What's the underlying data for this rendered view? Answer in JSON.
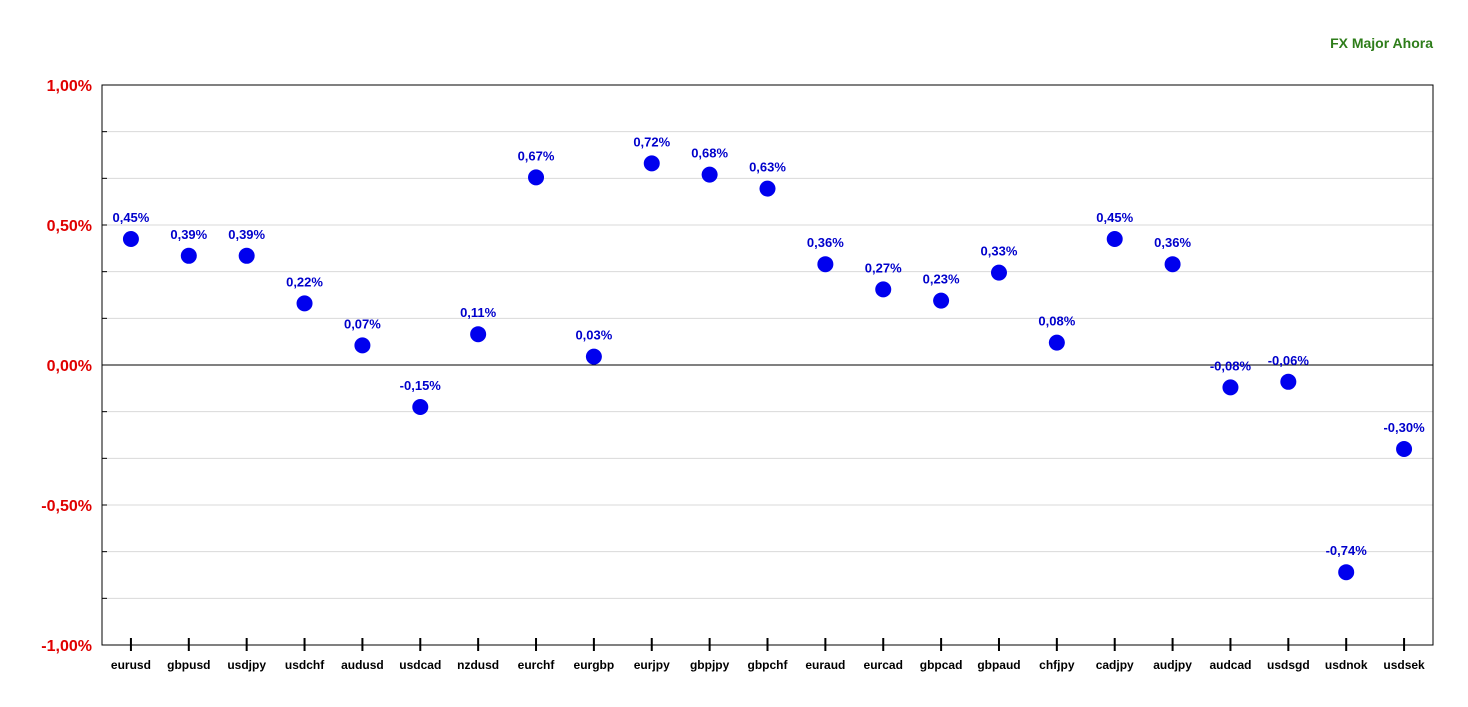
{
  "chart_data": {
    "type": "scatter",
    "title": "FX Major Ahora",
    "categories": [
      "eurusd",
      "gbpusd",
      "usdjpy",
      "usdchf",
      "audusd",
      "usdcad",
      "nzdusd",
      "eurchf",
      "eurgbp",
      "eurjpy",
      "gbpjpy",
      "gbpchf",
      "euraud",
      "eurcad",
      "gbpcad",
      "gbpaud",
      "chfjpy",
      "cadjpy",
      "audjpy",
      "audcad",
      "usdsgd",
      "usdnok",
      "usdsek"
    ],
    "values": [
      0.45,
      0.39,
      0.39,
      0.22,
      0.07,
      -0.15,
      0.11,
      0.67,
      0.03,
      0.72,
      0.68,
      0.63,
      0.36,
      0.27,
      0.23,
      0.33,
      0.08,
      0.45,
      0.36,
      -0.08,
      -0.06,
      -0.74,
      -0.3
    ],
    "data_labels": [
      "0,45%",
      "0,39%",
      "0,39%",
      "0,22%",
      "0,07%",
      "-0,15%",
      "0,11%",
      "0,67%",
      "0,03%",
      "0,72%",
      "0,68%",
      "0,63%",
      "0,36%",
      "0,27%",
      "0,23%",
      "0,33%",
      "0,08%",
      "0,45%",
      "0,36%",
      "-0,08%",
      "-0,06%",
      "-0,74%",
      "-0,30%"
    ],
    "y_ticks": [
      {
        "value": 1.0,
        "label": "1,00%"
      },
      {
        "value": 0.5,
        "label": "0,50%"
      },
      {
        "value": 0.0,
        "label": "0,00%"
      },
      {
        "value": -0.5,
        "label": "-0,50%"
      },
      {
        "value": -1.0,
        "label": "-1,00%"
      }
    ],
    "ylim": [
      -1.0,
      1.0
    ],
    "grid": true,
    "xlabel": "",
    "ylabel": "",
    "colors": {
      "marker": "#0000ee",
      "data_label": "#0000cc",
      "y_tick_label": "#e00000",
      "title": "#2e7d1a",
      "grid": "#d9d9d9",
      "zero_line": "#000000"
    }
  }
}
